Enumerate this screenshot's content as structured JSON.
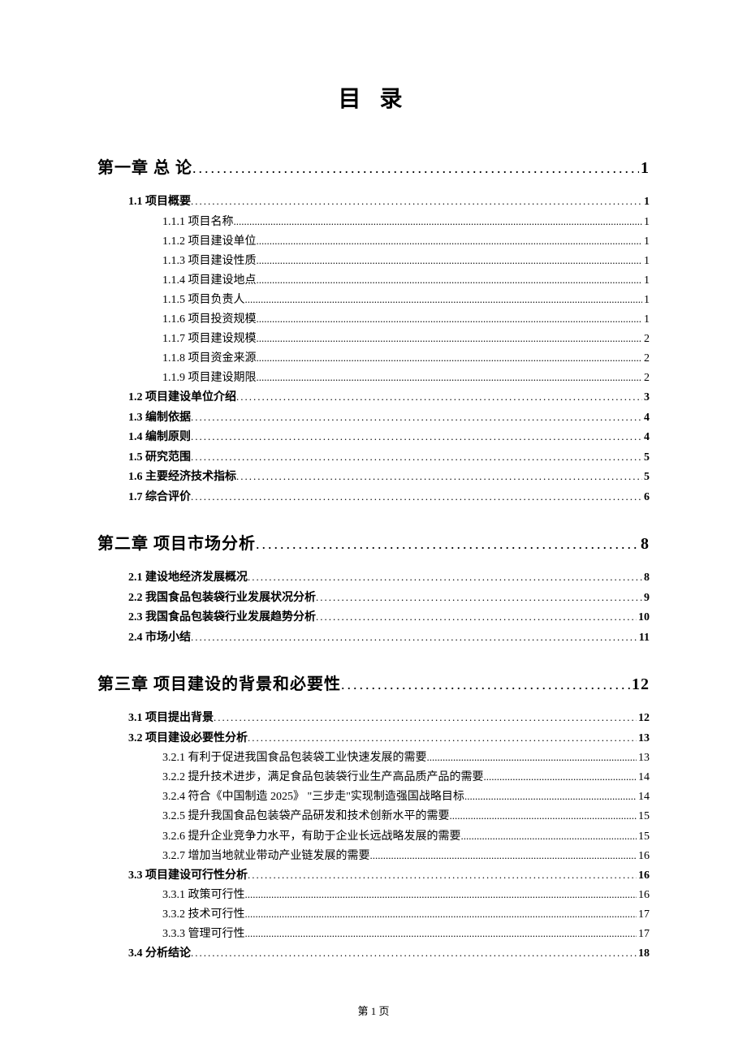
{
  "title": "目 录",
  "footer": "第 1 页",
  "entries": [
    {
      "level": 1,
      "label": "第一章 总 论",
      "page": "1"
    },
    {
      "level": 2,
      "label": "1.1 项目概要",
      "page": "1"
    },
    {
      "level": 3,
      "label": "1.1.1 项目名称",
      "page": "1"
    },
    {
      "level": 3,
      "label": "1.1.2 项目建设单位",
      "page": "1"
    },
    {
      "level": 3,
      "label": "1.1.3 项目建设性质",
      "page": "1"
    },
    {
      "level": 3,
      "label": "1.1.4 项目建设地点",
      "page": "1"
    },
    {
      "level": 3,
      "label": "1.1.5 项目负责人",
      "page": "1"
    },
    {
      "level": 3,
      "label": "1.1.6 项目投资规模",
      "page": "1"
    },
    {
      "level": 3,
      "label": "1.1.7 项目建设规模",
      "page": "2"
    },
    {
      "level": 3,
      "label": "1.1.8 项目资金来源",
      "page": "2"
    },
    {
      "level": 3,
      "label": "1.1.9 项目建设期限",
      "page": "2"
    },
    {
      "level": 2,
      "label": "1.2 项目建设单位介绍",
      "page": "3"
    },
    {
      "level": 2,
      "label": "1.3 编制依据",
      "page": "4"
    },
    {
      "level": 2,
      "label": "1.4 编制原则",
      "page": "4"
    },
    {
      "level": 2,
      "label": "1.5 研究范围",
      "page": "5"
    },
    {
      "level": 2,
      "label": "1.6 主要经济技术指标",
      "page": "5"
    },
    {
      "level": 2,
      "label": "1.7 综合评价",
      "page": "6"
    },
    {
      "level": 1,
      "label": "第二章 项目市场分析",
      "page": "8"
    },
    {
      "level": 2,
      "label": "2.1 建设地经济发展概况",
      "page": "8"
    },
    {
      "level": 2,
      "label": "2.2 我国食品包装袋行业发展状况分析",
      "page": "9"
    },
    {
      "level": 2,
      "label": "2.3 我国食品包装袋行业发展趋势分析",
      "page": "10"
    },
    {
      "level": 2,
      "label": "2.4 市场小结",
      "page": "11"
    },
    {
      "level": 1,
      "label": "第三章 项目建设的背景和必要性",
      "page": "12"
    },
    {
      "level": 2,
      "label": "3.1 项目提出背景",
      "page": "12"
    },
    {
      "level": 2,
      "label": "3.2 项目建设必要性分析",
      "page": "13"
    },
    {
      "level": 3,
      "label": "3.2.1 有利于促进我国食品包装袋工业快速发展的需要",
      "page": "13"
    },
    {
      "level": 3,
      "label": "3.2.2 提升技术进步，满足食品包装袋行业生产高品质产品的需要",
      "page": "14"
    },
    {
      "level": 3,
      "label": "3.2.4 符合《中国制造 2025》 \"三步走\"实现制造强国战略目标",
      "page": "14"
    },
    {
      "level": 3,
      "label": "3.2.5 提升我国食品包装袋产品研发和技术创新水平的需要",
      "page": "15"
    },
    {
      "level": 3,
      "label": "3.2.6 提升企业竞争力水平，有助于企业长远战略发展的需要",
      "page": "15"
    },
    {
      "level": 3,
      "label": "3.2.7 增加当地就业带动产业链发展的需要",
      "page": "16"
    },
    {
      "level": 2,
      "label": "3.3 项目建设可行性分析",
      "page": "16"
    },
    {
      "level": 3,
      "label": "3.3.1 政策可行性",
      "page": "16"
    },
    {
      "level": 3,
      "label": "3.3.2 技术可行性",
      "page": "17"
    },
    {
      "level": 3,
      "label": "3.3.3 管理可行性",
      "page": "17"
    },
    {
      "level": 2,
      "label": "3.4 分析结论",
      "page": "18"
    }
  ]
}
